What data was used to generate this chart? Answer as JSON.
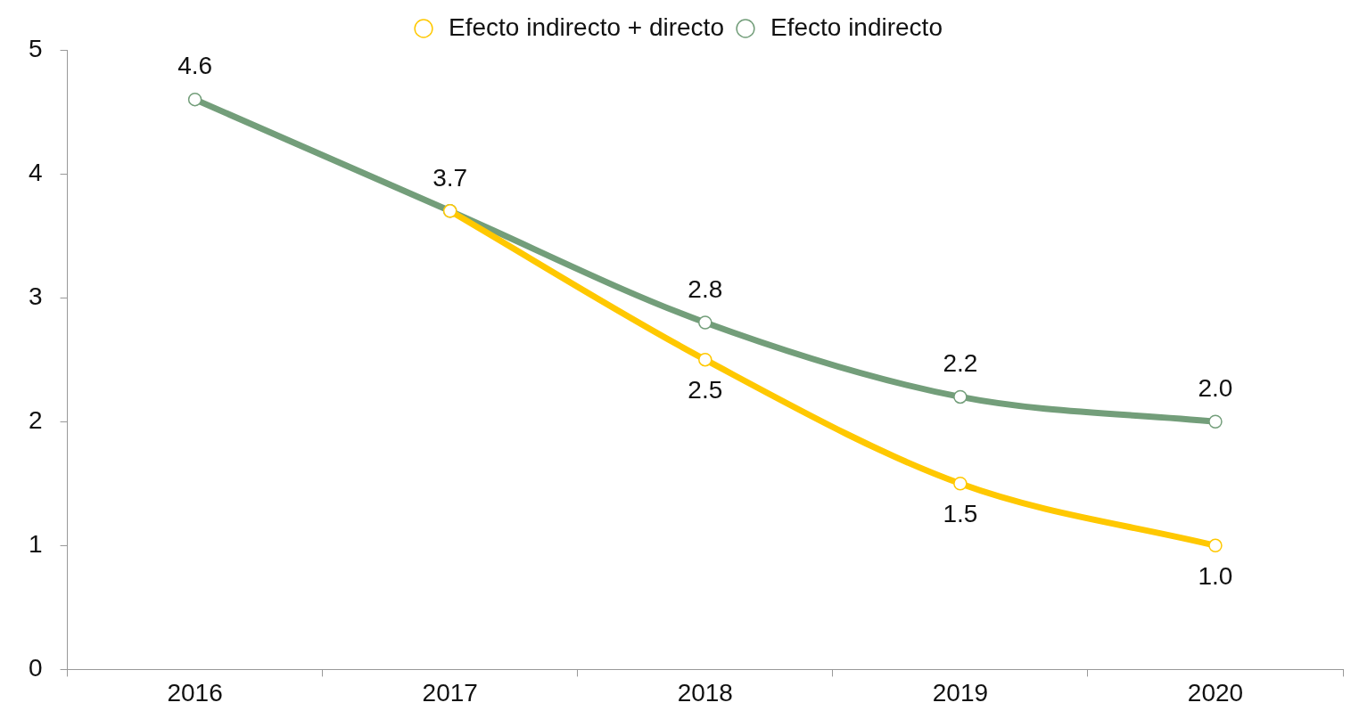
{
  "chart_data": {
    "type": "line",
    "categories": [
      "2016",
      "2017",
      "2018",
      "2019",
      "2020"
    ],
    "series": [
      {
        "name": "Efecto indirecto",
        "color": "#739e7a",
        "values": [
          4.6,
          3.7,
          2.8,
          2.2,
          2.0
        ],
        "value_labels": [
          "4.6",
          "3.7",
          "2.8",
          "2.2",
          "2.0"
        ]
      },
      {
        "name": "Efecto indirecto + directo",
        "color": "#ffc800",
        "values": [
          null,
          3.7,
          2.5,
          1.5,
          1.0
        ],
        "value_labels": [
          null,
          null,
          "2.5",
          "1.5",
          "1.0"
        ]
      }
    ],
    "ylim": [
      0,
      5
    ],
    "yticks": [
      0,
      1,
      2,
      3,
      4,
      5
    ],
    "grid": false,
    "legend": "top",
    "marker": "circle",
    "line_style": "solid"
  }
}
